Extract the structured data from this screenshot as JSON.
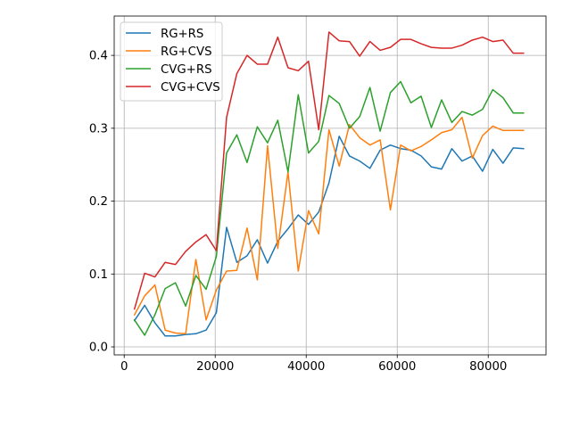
{
  "chart_data": {
    "type": "line",
    "title": "",
    "xlabel": "",
    "ylabel": "",
    "xlim": [
      -2200,
      92700
    ],
    "ylim": [
      -0.011,
      0.454
    ],
    "xticks": [
      0,
      20000,
      40000,
      60000,
      80000
    ],
    "yticks": [
      0.0,
      0.1,
      0.2,
      0.3,
      0.4
    ],
    "xtick_labels": [
      "0",
      "20000",
      "40000",
      "60000",
      "80000"
    ],
    "ytick_labels": [
      "0.0",
      "0.1",
      "0.2",
      "0.3",
      "0.4"
    ],
    "grid": true,
    "legend_position": "upper-left",
    "x": [
      2250,
      4500,
      6750,
      9000,
      11250,
      13500,
      15750,
      18000,
      20250,
      22500,
      24750,
      27000,
      29250,
      31500,
      33750,
      36000,
      38250,
      40500,
      42750,
      45000,
      47250,
      49500,
      51750,
      54000,
      56250,
      58500,
      60750,
      63000,
      65250,
      67500,
      69750,
      72000,
      74250,
      76500,
      78750,
      81000,
      83250,
      85500,
      87750
    ],
    "series": [
      {
        "name": "RG+RS",
        "color": "#1f77b4",
        "values": [
          0.036,
          0.057,
          0.033,
          0.015,
          0.015,
          0.017,
          0.018,
          0.023,
          0.047,
          0.164,
          0.116,
          0.125,
          0.147,
          0.115,
          0.145,
          0.162,
          0.181,
          0.168,
          0.185,
          0.225,
          0.289,
          0.262,
          0.255,
          0.245,
          0.27,
          0.277,
          0.272,
          0.27,
          0.262,
          0.247,
          0.244,
          0.272,
          0.255,
          0.262,
          0.241,
          0.271,
          0.252,
          0.273,
          0.272
        ]
      },
      {
        "name": "RG+CVS",
        "color": "#ff7f0e",
        "values": [
          0.044,
          0.07,
          0.085,
          0.023,
          0.019,
          0.018,
          0.12,
          0.037,
          0.078,
          0.104,
          0.105,
          0.163,
          0.092,
          0.276,
          0.135,
          0.24,
          0.104,
          0.187,
          0.155,
          0.298,
          0.248,
          0.305,
          0.287,
          0.277,
          0.284,
          0.188,
          0.277,
          0.269,
          0.275,
          0.284,
          0.294,
          0.298,
          0.315,
          0.259,
          0.29,
          0.303,
          0.297,
          0.297,
          0.297
        ]
      },
      {
        "name": "CVG+RS",
        "color": "#2ca02c",
        "values": [
          0.037,
          0.016,
          0.044,
          0.08,
          0.088,
          0.056,
          0.098,
          0.079,
          0.124,
          0.266,
          0.291,
          0.253,
          0.302,
          0.28,
          0.311,
          0.24,
          0.346,
          0.266,
          0.282,
          0.345,
          0.334,
          0.3,
          0.316,
          0.356,
          0.296,
          0.349,
          0.364,
          0.335,
          0.344,
          0.301,
          0.339,
          0.308,
          0.323,
          0.318,
          0.326,
          0.353,
          0.342,
          0.321,
          0.321
        ]
      },
      {
        "name": "CVG+CVS",
        "color": "#d62728",
        "values": [
          0.052,
          0.101,
          0.096,
          0.116,
          0.113,
          0.131,
          0.144,
          0.154,
          0.132,
          0.315,
          0.375,
          0.4,
          0.388,
          0.388,
          0.425,
          0.383,
          0.379,
          0.392,
          0.298,
          0.432,
          0.42,
          0.419,
          0.399,
          0.419,
          0.407,
          0.411,
          0.422,
          0.422,
          0.416,
          0.411,
          0.41,
          0.41,
          0.414,
          0.421,
          0.425,
          0.419,
          0.421,
          0.403,
          0.403
        ]
      }
    ]
  }
}
